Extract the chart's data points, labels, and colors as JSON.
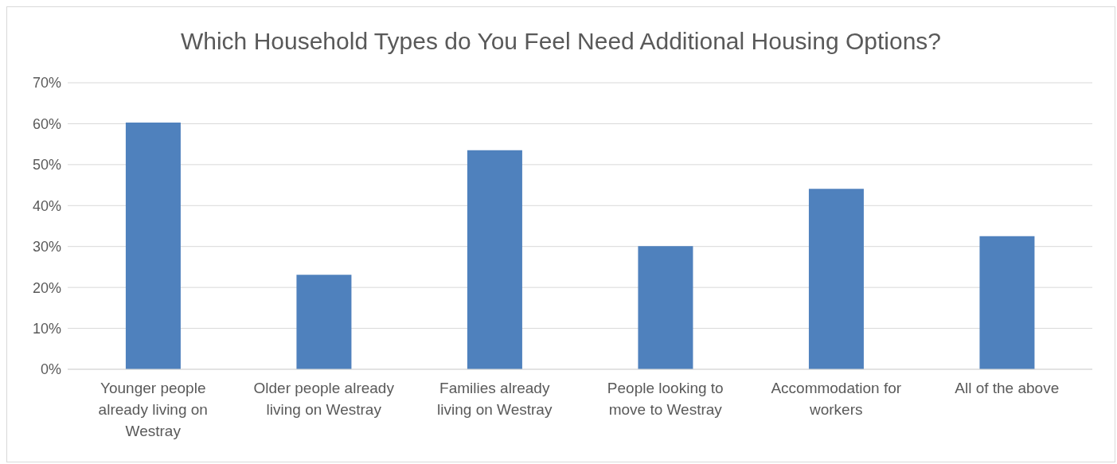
{
  "chart_data": {
    "type": "bar",
    "title": "Which Household Types do You Feel Need Additional Housing Options?",
    "categories": [
      "Younger people already living on Westray",
      "Older people already living on Westray",
      "Families already living on Westray",
      "People looking to move to Westray",
      "Accommodation for workers",
      "All of the above"
    ],
    "values": [
      60.3,
      23.1,
      53.5,
      30.1,
      44.1,
      32.5
    ],
    "color": "#4f81bd",
    "ylim": [
      0,
      70
    ],
    "yticks": [
      {
        "value": 0,
        "label": "0%"
      },
      {
        "value": 10,
        "label": "10%"
      },
      {
        "value": 20,
        "label": "20%"
      },
      {
        "value": 30,
        "label": "30%"
      },
      {
        "value": 40,
        "label": "40%"
      },
      {
        "value": 50,
        "label": "50%"
      },
      {
        "value": 60,
        "label": "60%"
      },
      {
        "value": 70,
        "label": "70%"
      }
    ],
    "grid": "y",
    "legend": false
  }
}
